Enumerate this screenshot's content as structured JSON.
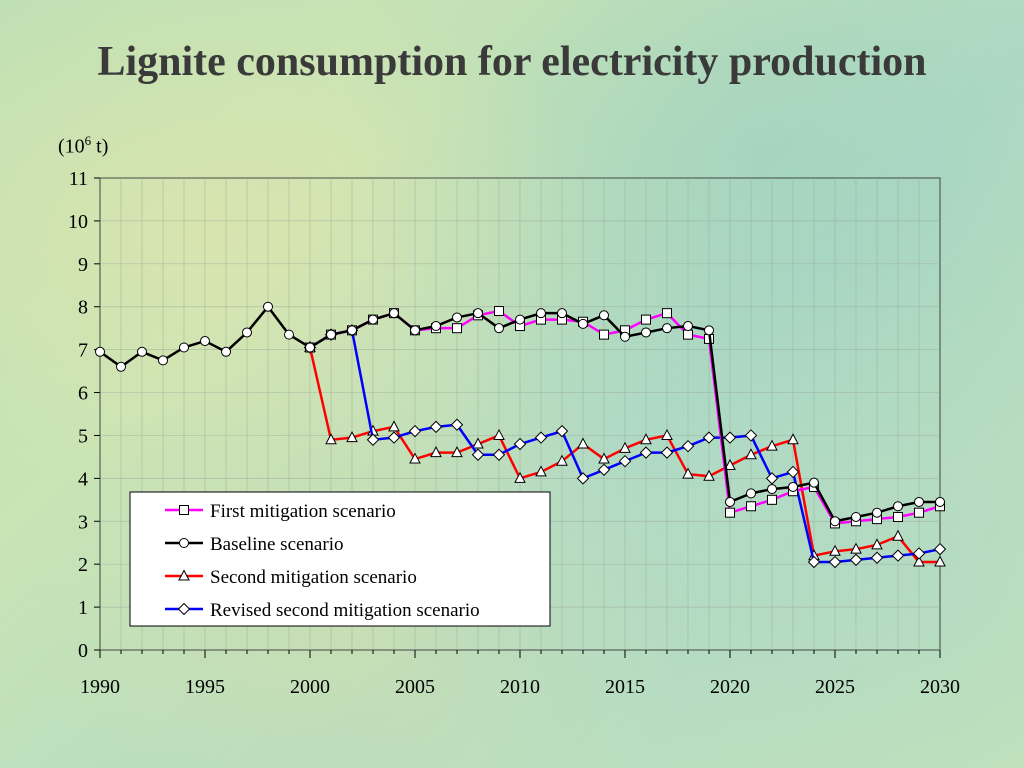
{
  "title": "Lignite consumption for electricity production",
  "unit": {
    "prefix": "(10",
    "exp": "6",
    "suffix": " t)"
  },
  "chart_data": {
    "type": "line",
    "title": "Lignite consumption for electricity production",
    "ylabel": "(10^6 t)",
    "xlim": [
      1990,
      2030
    ],
    "ylim": [
      0,
      11
    ],
    "xticks": [
      1990,
      1995,
      2000,
      2005,
      2010,
      2015,
      2020,
      2025,
      2030
    ],
    "yticks": [
      0,
      1,
      2,
      3,
      4,
      5,
      6,
      7,
      8,
      9,
      10,
      11
    ],
    "grid": true,
    "legend_position": "lower-left",
    "series": [
      {
        "name": "First mitigation scenario",
        "color": "#ff00ff",
        "marker": "square",
        "points": [
          [
            2000,
            7.05
          ],
          [
            2001,
            7.35
          ],
          [
            2002,
            7.45
          ],
          [
            2003,
            7.7
          ],
          [
            2004,
            7.85
          ],
          [
            2005,
            7.45
          ],
          [
            2006,
            7.5
          ],
          [
            2007,
            7.5
          ],
          [
            2008,
            7.8
          ],
          [
            2009,
            7.9
          ],
          [
            2010,
            7.55
          ],
          [
            2011,
            7.7
          ],
          [
            2012,
            7.7
          ],
          [
            2013,
            7.65
          ],
          [
            2014,
            7.35
          ],
          [
            2015,
            7.45
          ],
          [
            2016,
            7.7
          ],
          [
            2017,
            7.85
          ],
          [
            2018,
            7.35
          ],
          [
            2019,
            7.25
          ],
          [
            2020,
            3.2
          ],
          [
            2021,
            3.35
          ],
          [
            2022,
            3.5
          ],
          [
            2023,
            3.7
          ],
          [
            2024,
            3.8
          ],
          [
            2025,
            2.95
          ],
          [
            2026,
            3.0
          ],
          [
            2027,
            3.05
          ],
          [
            2028,
            3.1
          ],
          [
            2029,
            3.2
          ],
          [
            2030,
            3.35
          ]
        ]
      },
      {
        "name": "Baseline scenario",
        "color": "#000000",
        "marker": "circle",
        "points": [
          [
            1990,
            6.95
          ],
          [
            1991,
            6.6
          ],
          [
            1992,
            6.95
          ],
          [
            1993,
            6.75
          ],
          [
            1994,
            7.05
          ],
          [
            1995,
            7.2
          ],
          [
            1996,
            6.95
          ],
          [
            1997,
            7.4
          ],
          [
            1998,
            8.0
          ],
          [
            1999,
            7.35
          ],
          [
            2000,
            7.05
          ],
          [
            2001,
            7.35
          ],
          [
            2002,
            7.45
          ],
          [
            2003,
            7.7
          ],
          [
            2004,
            7.85
          ],
          [
            2005,
            7.45
          ],
          [
            2006,
            7.55
          ],
          [
            2007,
            7.75
          ],
          [
            2008,
            7.85
          ],
          [
            2009,
            7.5
          ],
          [
            2010,
            7.7
          ],
          [
            2011,
            7.85
          ],
          [
            2012,
            7.85
          ],
          [
            2013,
            7.6
          ],
          [
            2014,
            7.8
          ],
          [
            2015,
            7.3
          ],
          [
            2016,
            7.4
          ],
          [
            2017,
            7.5
          ],
          [
            2018,
            7.55
          ],
          [
            2019,
            7.45
          ],
          [
            2020,
            3.45
          ],
          [
            2021,
            3.65
          ],
          [
            2022,
            3.75
          ],
          [
            2023,
            3.8
          ],
          [
            2024,
            3.9
          ],
          [
            2025,
            3.0
          ],
          [
            2026,
            3.1
          ],
          [
            2027,
            3.2
          ],
          [
            2028,
            3.35
          ],
          [
            2029,
            3.45
          ],
          [
            2030,
            3.45
          ]
        ]
      },
      {
        "name": "Second mitigation scenario",
        "color": "#ff0000",
        "marker": "triangle",
        "points": [
          [
            2000,
            7.05
          ],
          [
            2001,
            4.9
          ],
          [
            2002,
            4.95
          ],
          [
            2003,
            5.1
          ],
          [
            2004,
            5.2
          ],
          [
            2005,
            4.45
          ],
          [
            2006,
            4.6
          ],
          [
            2007,
            4.6
          ],
          [
            2008,
            4.8
          ],
          [
            2009,
            5.0
          ],
          [
            2010,
            4.0
          ],
          [
            2011,
            4.15
          ],
          [
            2012,
            4.4
          ],
          [
            2013,
            4.8
          ],
          [
            2014,
            4.45
          ],
          [
            2015,
            4.7
          ],
          [
            2016,
            4.9
          ],
          [
            2017,
            5.0
          ],
          [
            2018,
            4.1
          ],
          [
            2019,
            4.05
          ],
          [
            2020,
            4.3
          ],
          [
            2021,
            4.55
          ],
          [
            2022,
            4.75
          ],
          [
            2023,
            4.9
          ],
          [
            2024,
            2.2
          ],
          [
            2025,
            2.3
          ],
          [
            2026,
            2.35
          ],
          [
            2027,
            2.45
          ],
          [
            2028,
            2.65
          ],
          [
            2029,
            2.05
          ],
          [
            2030,
            2.05
          ]
        ]
      },
      {
        "name": "Revised second mitigation scenario",
        "color": "#0000ff",
        "marker": "diamond",
        "points": [
          [
            2000,
            7.05
          ],
          [
            2001,
            7.35
          ],
          [
            2002,
            7.45
          ],
          [
            2003,
            4.9
          ],
          [
            2004,
            4.95
          ],
          [
            2005,
            5.1
          ],
          [
            2006,
            5.2
          ],
          [
            2007,
            5.25
          ],
          [
            2008,
            4.55
          ],
          [
            2009,
            4.55
          ],
          [
            2010,
            4.8
          ],
          [
            2011,
            4.95
          ],
          [
            2012,
            5.1
          ],
          [
            2013,
            4.0
          ],
          [
            2014,
            4.2
          ],
          [
            2015,
            4.4
          ],
          [
            2016,
            4.6
          ],
          [
            2017,
            4.6
          ],
          [
            2018,
            4.75
          ],
          [
            2019,
            4.95
          ],
          [
            2020,
            4.95
          ],
          [
            2021,
            5.0
          ],
          [
            2022,
            4.0
          ],
          [
            2023,
            4.15
          ],
          [
            2024,
            2.05
          ],
          [
            2025,
            2.05
          ],
          [
            2026,
            2.1
          ],
          [
            2027,
            2.15
          ],
          [
            2028,
            2.2
          ],
          [
            2029,
            2.25
          ],
          [
            2030,
            2.35
          ]
        ]
      }
    ]
  }
}
